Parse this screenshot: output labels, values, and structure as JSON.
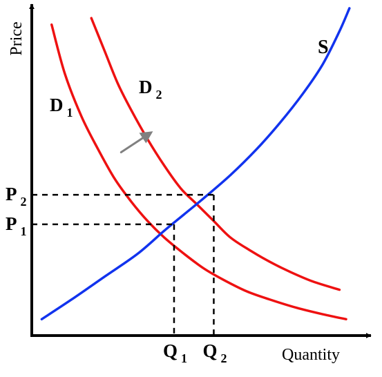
{
  "chart_data": {
    "type": "line",
    "xlabel": "Quantity",
    "ylabel": "Price",
    "xlim": [
      0,
      100
    ],
    "ylim": [
      0,
      100
    ],
    "grid": false,
    "colors": {
      "demand": "#ee1111",
      "supply": "#1133ee",
      "shift_arrow": "#808080",
      "axes": "#000000"
    },
    "series": [
      {
        "name": "D1",
        "label_main": "D",
        "label_sub": "1",
        "color": "#ee1111",
        "points": [
          [
            6,
            95
          ],
          [
            10,
            80
          ],
          [
            15,
            67
          ],
          [
            20,
            57
          ],
          [
            25,
            48
          ],
          [
            30,
            41
          ],
          [
            35,
            35
          ],
          [
            40,
            30
          ],
          [
            46,
            25
          ],
          [
            52,
            20.5
          ],
          [
            58,
            17
          ],
          [
            65,
            13.5
          ],
          [
            72,
            11
          ],
          [
            80,
            8.5
          ],
          [
            88,
            6.5
          ],
          [
            95,
            5
          ]
        ]
      },
      {
        "name": "D2",
        "label_main": "D",
        "label_sub": "2",
        "color": "#ee1111",
        "points": [
          [
            18,
            97
          ],
          [
            22,
            87
          ],
          [
            26,
            77
          ],
          [
            30,
            69
          ],
          [
            35,
            60
          ],
          [
            40,
            52
          ],
          [
            45,
            45
          ],
          [
            50,
            40
          ],
          [
            55,
            35
          ],
          [
            60,
            30
          ],
          [
            66,
            26
          ],
          [
            72,
            22.5
          ],
          [
            78,
            19.5
          ],
          [
            85,
            16.5
          ],
          [
            93,
            14
          ]
        ]
      },
      {
        "name": "S",
        "label_main": "S",
        "label_sub": "",
        "color": "#1133ee",
        "points": [
          [
            3,
            5
          ],
          [
            12,
            11
          ],
          [
            22,
            18
          ],
          [
            32,
            25
          ],
          [
            40,
            32
          ],
          [
            46,
            37
          ],
          [
            52,
            42
          ],
          [
            60,
            49
          ],
          [
            68,
            57
          ],
          [
            75,
            65
          ],
          [
            82,
            74
          ],
          [
            88,
            83
          ],
          [
            93,
            93
          ],
          [
            96,
            100
          ]
        ]
      }
    ],
    "equilibria": [
      {
        "x": 43,
        "y": 34,
        "price_label_main": "P",
        "price_label_sub": "1",
        "quantity_label_main": "Q",
        "quantity_label_sub": "1"
      },
      {
        "x": 55,
        "y": 43,
        "price_label_main": "P",
        "price_label_sub": "2",
        "quantity_label_main": "Q",
        "quantity_label_sub": "2"
      }
    ],
    "shift_arrow": {
      "from": [
        27,
        56
      ],
      "to": [
        36,
        62
      ]
    }
  }
}
